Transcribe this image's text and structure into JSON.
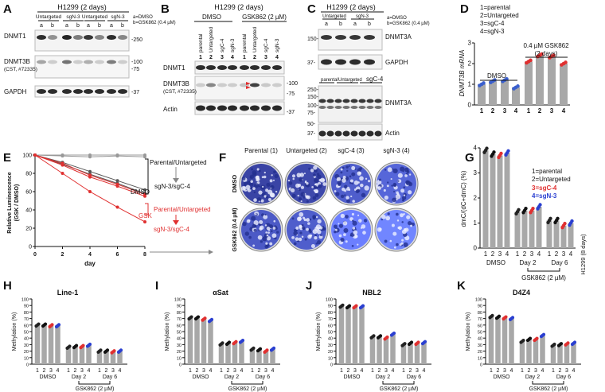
{
  "panels": {
    "A": {
      "letter": "A",
      "title": "H1299 (2 days)",
      "groups": [
        "Untargeted",
        "sgN-3",
        "Untargeted",
        "sgN-3"
      ],
      "lanes": [
        "a",
        "b",
        "a",
        "b",
        "a",
        "b",
        "a",
        "b"
      ],
      "legend": [
        "a=DMSO",
        "b=GSK862 (0.4 µM)"
      ],
      "bands": [
        "DNMT1",
        "DNMT3B",
        "(CST, #72335)",
        "GAPDH"
      ],
      "mw": [
        "-250",
        "-100",
        "-75",
        "-37"
      ]
    },
    "B": {
      "letter": "B",
      "title": "H1299 (2 days)",
      "cond_dmso": "DMSO",
      "cond_gsk": "GSK862 (2 µM)",
      "lane_names": [
        "parental",
        "Untargeted",
        "sgC-4",
        "sgN-3",
        "parental",
        "Untargeted",
        "sgC-4",
        "sgN-3"
      ],
      "lane_nums": [
        "1",
        "2",
        "3",
        "4",
        "1",
        "2",
        "3",
        "4"
      ],
      "bands": [
        "DNMT1",
        "DNMT3B",
        "(CST, #72335)",
        "Actin"
      ],
      "mw": [
        "-100",
        "-75",
        "-37"
      ]
    },
    "C": {
      "letter": "C",
      "title": "H1299 (2 days)",
      "groups": [
        "Untargeted",
        "sgN-3"
      ],
      "lanes": [
        "a",
        "b",
        "a",
        "b"
      ],
      "legend": [
        "a=DMSO",
        "b=GSK862 (0.4 µM)"
      ],
      "bands": [
        "DNMT3A",
        "GAPDH",
        "DNMT3A",
        "Actin"
      ],
      "mw_top": [
        "150-",
        "37-"
      ],
      "lower_groups": [
        "parental",
        "Untargeted",
        "sgC-4"
      ],
      "mw_bottom": [
        "250-",
        "150-",
        "100-",
        "75-",
        "50-",
        "37-"
      ]
    },
    "D": {
      "letter": "D",
      "legend": [
        "1=parental",
        "2=Untargeted",
        "3=sgC-4",
        "4=sgN-3"
      ],
      "group_dmso": "DMSO",
      "group_gsk": [
        "0.4 µM GSK862",
        "(2 days)"
      ],
      "ylabel": "DNMT3B mRNA"
    },
    "E": {
      "letter": "E",
      "ylabel": [
        "Relative Luminescence",
        "(GSK / DMSO)"
      ],
      "xlabel": "day",
      "labels": [
        "Parental/Untargeted",
        "DMSO",
        "sgN-3/sgC-4",
        "Parental/Untargeted",
        "GSK",
        "sgN-3/sgC-4"
      ]
    },
    "F": {
      "letter": "F",
      "col_titles": [
        "Parental (1)",
        "Untargeted (2)",
        "sgC-4 (3)",
        "sgN-3 (4)"
      ],
      "row_labels": [
        "DMSO",
        "GSK862 (0.4 µM)"
      ]
    },
    "G": {
      "letter": "G",
      "ylabel": "dmC/(dC+dmC) (%)",
      "right_label": "H1299 (8 days)",
      "legend": [
        "1=parental",
        "2=Untargeted",
        "3=sgC-4",
        "4=sgN-3"
      ],
      "groups": [
        "DMSO",
        "Day 2",
        "Day 6"
      ],
      "treatment": "GSK862 (2 µM)"
    },
    "H": {
      "letter": "H",
      "title": "Line-1"
    },
    "I": {
      "letter": "I",
      "title": "αSat"
    },
    "J": {
      "letter": "J",
      "title": "NBL2"
    },
    "K": {
      "letter": "K",
      "title": "D4Z4"
    },
    "methyl_common": {
      "ylabel": "Methylation (%)",
      "groups": [
        "DMSO",
        "Day 2",
        "Day 6"
      ],
      "treatment": "GSK862 (2 µM)",
      "lane_nums": [
        "1",
        "2",
        "3",
        "4"
      ]
    }
  },
  "chart_data": [
    {
      "type": "bar",
      "id": "D",
      "ylabel": "DNMT3B mRNA",
      "ylim": [
        0,
        3
      ],
      "yticks": [
        0,
        1,
        2,
        3
      ],
      "categories": [
        "1",
        "2",
        "3",
        "4",
        "1",
        "2",
        "3",
        "4"
      ],
      "values": [
        1.0,
        1.15,
        1.2,
        0.85,
        2.1,
        2.4,
        2.35,
        2.0
      ],
      "colors": [
        "#3a5fcd",
        "#3a5fcd",
        "#3a5fcd",
        "#3a5fcd",
        "#e03030",
        "#e03030",
        "#e03030",
        "#e03030"
      ]
    },
    {
      "type": "line",
      "id": "E",
      "xlabel": "day",
      "ylabel": "Relative Luminescence (GSK / DMSO)",
      "x": [
        0,
        2,
        4,
        6,
        8
      ],
      "xlim": [
        0,
        8
      ],
      "ylim": [
        0,
        100
      ],
      "xticks": [
        0,
        2,
        4,
        6,
        8
      ],
      "yticks": [
        0,
        20,
        40,
        60,
        80,
        100
      ],
      "series": [
        {
          "name": "Parental/Untargeted",
          "values": [
            100,
            100,
            100,
            100,
            100
          ],
          "color": "#999999"
        },
        {
          "name": "Parental/Untargeted",
          "values": [
            100,
            99,
            98,
            99,
            98
          ],
          "color": "#999999"
        },
        {
          "name": "sgN-3/sgC-4",
          "values": [
            100,
            92,
            82,
            72,
            62
          ],
          "color": "#555555"
        },
        {
          "name": "sgN-3/sgC-4",
          "values": [
            100,
            90,
            79,
            69,
            58
          ],
          "color": "#555555"
        },
        {
          "name": "Parental/Untargeted",
          "values": [
            100,
            91,
            78,
            68,
            57
          ],
          "color": "#e03030"
        },
        {
          "name": "Parental/Untargeted",
          "values": [
            100,
            89,
            76,
            66,
            55
          ],
          "color": "#e03030"
        },
        {
          "name": "sgN-3/sgC-4",
          "values": [
            100,
            80,
            60,
            43,
            27
          ],
          "color": "#e03030"
        }
      ]
    },
    {
      "type": "bar",
      "id": "G",
      "ylabel": "dmC/(dC+dmC) (%)",
      "ylim": [
        0,
        4
      ],
      "yticks": [
        0,
        1,
        2,
        3,
        4
      ],
      "categories": [
        "1",
        "2",
        "3",
        "4",
        "1",
        "2",
        "3",
        "4",
        "1",
        "2",
        "3",
        "4"
      ],
      "values": [
        3.9,
        3.75,
        3.7,
        3.8,
        1.45,
        1.5,
        1.5,
        1.65,
        1.1,
        1.1,
        0.9,
        1.0
      ]
    },
    {
      "type": "bar",
      "id": "H",
      "title": "Line-1",
      "ylabel": "Methylation (%)",
      "ylim": [
        0,
        100
      ],
      "yticks": [
        0,
        10,
        20,
        30,
        40,
        50,
        60,
        70,
        80,
        90,
        100
      ],
      "categories": [
        "1",
        "2",
        "3",
        "4",
        "1",
        "2",
        "3",
        "4",
        "1",
        "2",
        "3",
        "4"
      ],
      "values": [
        60,
        60,
        59,
        59,
        26,
        27,
        27,
        29,
        20,
        20,
        19,
        20
      ]
    },
    {
      "type": "bar",
      "id": "I",
      "title": "αSat",
      "ylabel": "Methylation (%)",
      "ylim": [
        0,
        100
      ],
      "yticks": [
        0,
        10,
        20,
        30,
        40,
        50,
        60,
        70,
        80,
        90,
        100
      ],
      "categories": [
        "1",
        "2",
        "3",
        "4",
        "1",
        "2",
        "3",
        "4",
        "1",
        "2",
        "3",
        "4"
      ],
      "values": [
        71,
        71,
        69,
        67,
        31,
        32,
        33,
        35,
        23,
        22,
        20,
        23
      ]
    },
    {
      "type": "bar",
      "id": "J",
      "title": "NBL2",
      "ylabel": "Methylation (%)",
      "ylim": [
        0,
        100
      ],
      "yticks": [
        0,
        10,
        20,
        30,
        40,
        50,
        60,
        70,
        80,
        90,
        100
      ],
      "categories": [
        "1",
        "2",
        "3",
        "4",
        "1",
        "2",
        "3",
        "4",
        "1",
        "2",
        "3",
        "4"
      ],
      "values": [
        89,
        88,
        88,
        88,
        42,
        42,
        40,
        46,
        30,
        32,
        32,
        33
      ]
    },
    {
      "type": "bar",
      "id": "K",
      "title": "D4Z4",
      "ylabel": "Methylation (%)",
      "ylim": [
        0,
        100
      ],
      "yticks": [
        0,
        10,
        20,
        30,
        40,
        50,
        60,
        70,
        80,
        90,
        100
      ],
      "categories": [
        "1",
        "2",
        "3",
        "4",
        "1",
        "2",
        "3",
        "4",
        "1",
        "2",
        "3",
        "4"
      ],
      "values": [
        73,
        72,
        71,
        70,
        35,
        38,
        38,
        44,
        29,
        30,
        31,
        32
      ]
    }
  ]
}
